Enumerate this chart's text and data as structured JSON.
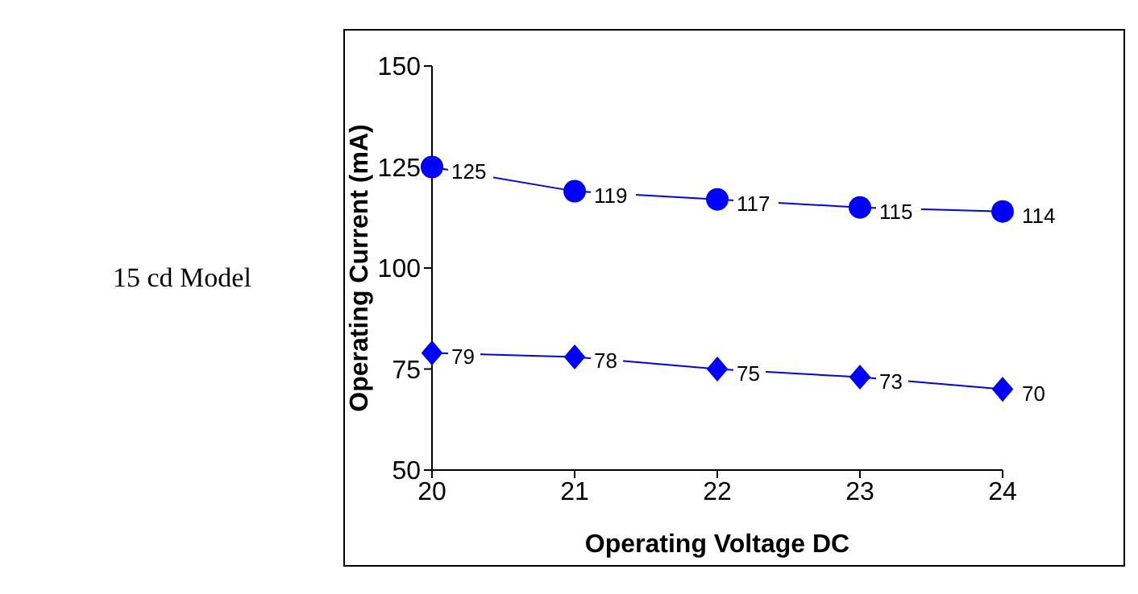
{
  "chart_data": {
    "type": "line",
    "xlabel": "Operating Voltage DC",
    "ylabel": "Operating Current (mA)",
    "annotations": [
      "15 cd Model"
    ],
    "x": [
      20,
      21,
      22,
      23,
      24
    ],
    "xlim": [
      20,
      24
    ],
    "xticks": [
      20,
      21,
      22,
      23,
      24
    ],
    "ylim": [
      50,
      150
    ],
    "yticks": [
      50,
      75,
      100,
      125,
      150
    ],
    "series": [
      {
        "color": "#0000ff",
        "marker": "circle",
        "values": [
          125,
          119,
          117,
          115,
          114
        ]
      },
      {
        "color": "#0000ff",
        "marker": "diamond",
        "values": [
          79,
          78,
          75,
          73,
          70
        ]
      }
    ],
    "data_labels": true,
    "grid": false
  }
}
